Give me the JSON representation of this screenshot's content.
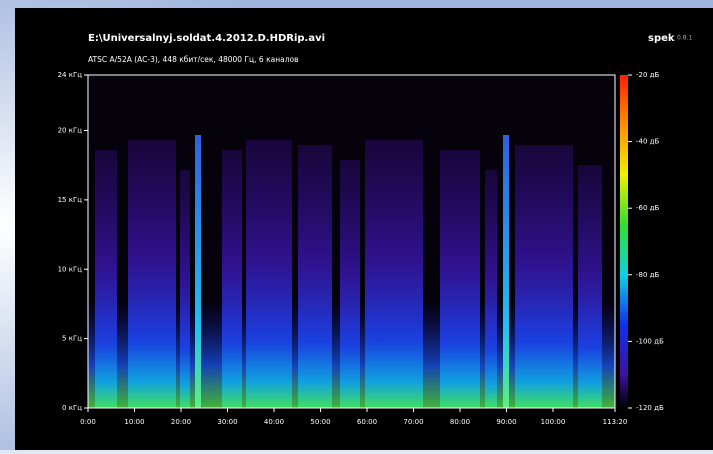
{
  "chart_data": {
    "type": "spectrogram",
    "title": "E:\\Universalnyj.soldat.4.2012.D.HDRip.avi",
    "subtitle": "ATSC A/52A (AC-3), 448 кбит/сек, 48000 Гц, 6 каналов",
    "app_name": "spek",
    "app_version": "0.8.1",
    "xlim": [
      0,
      6800
    ],
    "xticks": [
      {
        "value": 0,
        "label": "0:00"
      },
      {
        "value": 600,
        "label": "10:00"
      },
      {
        "value": 1200,
        "label": "20:00"
      },
      {
        "value": 1800,
        "label": "30:00"
      },
      {
        "value": 2400,
        "label": "40:00"
      },
      {
        "value": 3000,
        "label": "50:00"
      },
      {
        "value": 3600,
        "label": "60:00"
      },
      {
        "value": 4200,
        "label": "70:00"
      },
      {
        "value": 4800,
        "label": "80:00"
      },
      {
        "value": 5400,
        "label": "90:00"
      },
      {
        "value": 6000,
        "label": "100:00"
      },
      {
        "value": 6800,
        "label": "113:20"
      }
    ],
    "ylim": [
      0,
      24
    ],
    "yticks": [
      {
        "value": 0,
        "label": "0 кГц"
      },
      {
        "value": 5,
        "label": "5 кГц"
      },
      {
        "value": 10,
        "label": "10 кГц"
      },
      {
        "value": 15,
        "label": "15 кГц"
      },
      {
        "value": 20,
        "label": "20 кГц"
      },
      {
        "value": 24,
        "label": "24 кГц"
      }
    ],
    "zlim": [
      -120,
      -20
    ],
    "zticks": [
      {
        "value": -20,
        "label": "-20 дБ"
      },
      {
        "value": -40,
        "label": "-40 дБ"
      },
      {
        "value": -60,
        "label": "-60 дБ"
      },
      {
        "value": -80,
        "label": "-80 дБ"
      },
      {
        "value": -100,
        "label": "-100 дБ"
      },
      {
        "value": -120,
        "label": "-120 дБ"
      }
    ]
  }
}
